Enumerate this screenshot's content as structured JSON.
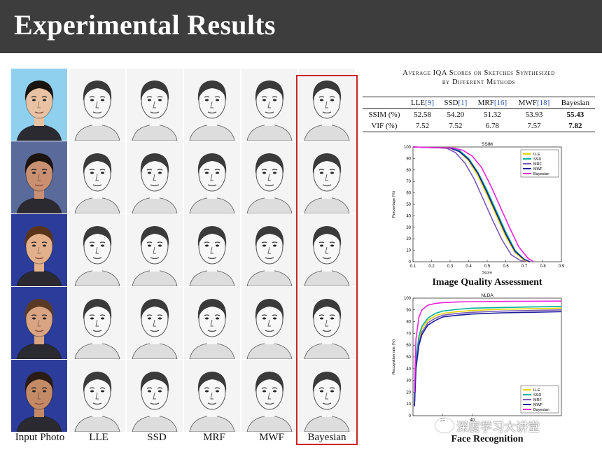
{
  "slide": {
    "title": "Experimental Results"
  },
  "grid": {
    "columns": [
      {
        "label": "Input Photo",
        "kind": "photo"
      },
      {
        "label": "LLE",
        "kind": "sketch"
      },
      {
        "label": "SSD",
        "kind": "sketch"
      },
      {
        "label": "MRF",
        "kind": "sketch"
      },
      {
        "label": "MWF",
        "kind": "sketch"
      },
      {
        "label": "Bayesian",
        "kind": "sketch"
      }
    ],
    "rows": [
      {
        "bg": "#8fd0ee",
        "skin": "#e8c2a2",
        "hair": "#1a1410"
      },
      {
        "bg": "#5a6a9a",
        "skin": "#c99072",
        "hair": "#1c1410"
      },
      {
        "bg": "#2c3c9a",
        "skin": "#e3b08c",
        "hair": "#5a3418"
      },
      {
        "bg": "#2c3c9a",
        "skin": "#d9a482",
        "hair": "#5a3a22"
      },
      {
        "bg": "#2c3c9a",
        "skin": "#c48a66",
        "hair": "#2a1c14"
      }
    ]
  },
  "table": {
    "caption_line1": "Average IQA Scores on Sketches Synthesized",
    "caption_line2": "by Different Methods",
    "headers": [
      {
        "name": "LLE",
        "ref": "[9]"
      },
      {
        "name": "SSD",
        "ref": "[1]"
      },
      {
        "name": "MRF",
        "ref": "[16]"
      },
      {
        "name": "MWF",
        "ref": "[18]"
      },
      {
        "name": "Bayesian",
        "ref": ""
      }
    ],
    "rows": [
      {
        "label": "SSIM (%)",
        "values": [
          "52.58",
          "54.20",
          "51.32",
          "53.93",
          "55.43"
        ]
      },
      {
        "label": "VIF (%)",
        "values": [
          "7.52",
          "7.52",
          "6.78",
          "7.57",
          "7.82"
        ]
      }
    ]
  },
  "chart_data": [
    {
      "type": "line",
      "title": "SSIM",
      "xlabel": "Score",
      "ylabel": "Percentage (%)",
      "xlim": [
        0.1,
        0.9
      ],
      "ylim": [
        0,
        100
      ],
      "xticks": [
        "0.1",
        "0.2",
        "0.3",
        "0.4",
        "0.5",
        "0.6",
        "0.7",
        "0.8",
        "0.9"
      ],
      "yticks": [
        "0",
        "10",
        "20",
        "30",
        "40",
        "50",
        "60",
        "70",
        "80",
        "90",
        "100"
      ],
      "legend": "top-right",
      "caption": "Image Quality Assessment",
      "series": [
        {
          "name": "LLE",
          "color": "#e6d400",
          "x": [
            0.1,
            0.3,
            0.35,
            0.4,
            0.45,
            0.5,
            0.55,
            0.6,
            0.65,
            0.7,
            0.72
          ],
          "y": [
            100,
            99,
            96,
            88,
            75,
            58,
            40,
            22,
            8,
            1,
            0
          ]
        },
        {
          "name": "SSD",
          "color": "#00b0a0",
          "x": [
            0.1,
            0.3,
            0.35,
            0.4,
            0.45,
            0.5,
            0.55,
            0.6,
            0.65,
            0.7,
            0.73
          ],
          "y": [
            100,
            99,
            97,
            90,
            78,
            62,
            44,
            26,
            10,
            2,
            0
          ]
        },
        {
          "name": "MRF",
          "color": "#7a5ab8",
          "x": [
            0.1,
            0.28,
            0.33,
            0.38,
            0.43,
            0.48,
            0.53,
            0.58,
            0.63,
            0.68,
            0.71
          ],
          "y": [
            100,
            99,
            95,
            86,
            72,
            54,
            36,
            19,
            6,
            1,
            0
          ]
        },
        {
          "name": "MWF",
          "color": "#1a1a9a",
          "x": [
            0.1,
            0.3,
            0.35,
            0.4,
            0.45,
            0.5,
            0.55,
            0.6,
            0.65,
            0.7,
            0.73
          ],
          "y": [
            100,
            99,
            96,
            89,
            77,
            60,
            42,
            24,
            9,
            2,
            0
          ]
        },
        {
          "name": "Bayesian",
          "color": "#ee22dd",
          "x": [
            0.1,
            0.32,
            0.37,
            0.42,
            0.47,
            0.52,
            0.57,
            0.62,
            0.67,
            0.72,
            0.75
          ],
          "y": [
            100,
            99,
            97,
            92,
            82,
            66,
            48,
            30,
            13,
            3,
            0
          ]
        }
      ]
    },
    {
      "type": "line",
      "title": "NLDA",
      "xlabel": "",
      "ylabel": "Recognition rate (%)",
      "xlim": [
        0,
        100
      ],
      "ylim": [
        0,
        100
      ],
      "xticks": [
        "20",
        "40"
      ],
      "yticks": [
        "0",
        "10",
        "20",
        "30",
        "40",
        "50",
        "60",
        "70",
        "80",
        "90",
        "100"
      ],
      "legend": "bottom-right",
      "caption": "Face Recognition",
      "series": [
        {
          "name": "LLE",
          "color": "#e6d400",
          "x": [
            1,
            2,
            4,
            6,
            10,
            15,
            20,
            30,
            40,
            60,
            80,
            100
          ],
          "y": [
            10,
            45,
            65,
            74,
            81,
            85,
            87,
            88.5,
            89.5,
            90.5,
            91,
            91.5
          ]
        },
        {
          "name": "SSD",
          "color": "#00b0a0",
          "x": [
            1,
            2,
            4,
            6,
            10,
            15,
            20,
            30,
            40,
            60,
            80,
            100
          ],
          "y": [
            12,
            48,
            68,
            76,
            83,
            87,
            89,
            90.5,
            91.5,
            92,
            92.5,
            93
          ]
        },
        {
          "name": "MRF",
          "color": "#7a5ab8",
          "x": [
            1,
            2,
            4,
            6,
            10,
            15,
            20,
            30,
            40,
            60,
            80,
            100
          ],
          "y": [
            9,
            42,
            62,
            71,
            79,
            83,
            85.5,
            87,
            88,
            89,
            89.5,
            90
          ]
        },
        {
          "name": "MWF",
          "color": "#1a1a9a",
          "x": [
            1,
            2,
            4,
            6,
            10,
            15,
            20,
            30,
            40,
            60,
            80,
            100
          ],
          "y": [
            8,
            40,
            60,
            69,
            77,
            81,
            84,
            85.5,
            86.5,
            87.5,
            88,
            88.5
          ]
        },
        {
          "name": "Bayesian",
          "color": "#ee22dd",
          "x": [
            1,
            2,
            4,
            6,
            10,
            15,
            20,
            30,
            40,
            60,
            80,
            100
          ],
          "y": [
            20,
            65,
            84,
            90,
            94,
            95.5,
            96.2,
            96.8,
            97,
            97.2,
            97.4,
            97.5
          ]
        }
      ]
    }
  ],
  "watermark": {
    "text": "深度学习大讲堂"
  }
}
